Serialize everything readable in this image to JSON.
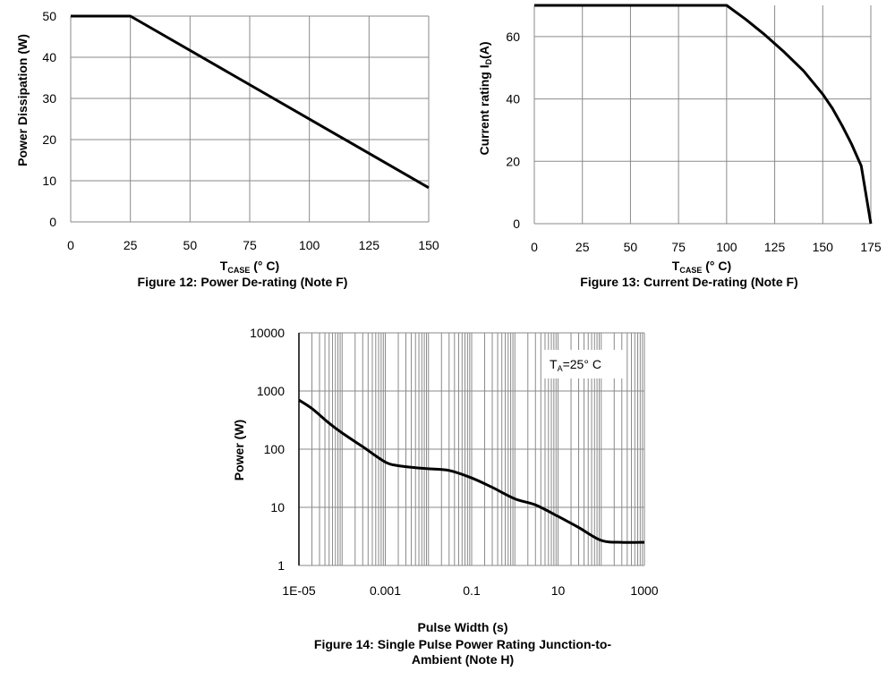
{
  "chart_data": [
    {
      "type": "line",
      "caption": "Figure 12: Power De-rating (Note F)",
      "xlabel": {
        "main": "T",
        "sub": "CASE",
        "rest": " (°  C)"
      },
      "ylabel": "Power Dissipation (W)",
      "xlim": [
        0,
        150
      ],
      "ylim": [
        0,
        50
      ],
      "xticks": [
        0,
        25,
        50,
        75,
        100,
        125,
        150
      ],
      "yticks": [
        0,
        10,
        20,
        30,
        40,
        50
      ],
      "grid": true,
      "series": [
        {
          "x": [
            0,
            25,
            150
          ],
          "y": [
            50,
            50,
            8.3
          ]
        }
      ]
    },
    {
      "type": "line",
      "caption": "Figure 13: Current De-rating (Note F)",
      "xlabel": {
        "main": "T",
        "sub": "CASE",
        "rest": " (°  C)"
      },
      "ylabel": {
        "main": "Current rating I",
        "sub": "D",
        "rest": "(A)"
      },
      "xlim": [
        0,
        175
      ],
      "ylim": [
        0,
        70
      ],
      "xticks": [
        0,
        25,
        50,
        75,
        100,
        125,
        150,
        175
      ],
      "yticks": [
        0,
        20,
        40,
        60
      ],
      "grid": true,
      "series": [
        {
          "x": [
            0,
            100,
            110,
            120,
            130,
            140,
            150,
            155,
            160,
            165,
            170,
            175
          ],
          "y": [
            70,
            70,
            65.5,
            60.5,
            55,
            49,
            41.5,
            37,
            31.5,
            25.5,
            18.5,
            0
          ]
        }
      ]
    },
    {
      "type": "line",
      "caption": [
        "Figure 14: Single Pulse Power Rating Junction-to-",
        "Ambient (Note H)"
      ],
      "xlabel": "Pulse Width (s)",
      "ylabel": "Power (W)",
      "xscale": "log",
      "yscale": "log",
      "xlim": [
        1e-05,
        1000
      ],
      "ylim": [
        1,
        10000
      ],
      "xtick_labels": [
        "1E-05",
        "0.001",
        "0.1",
        "10",
        "1000"
      ],
      "ytick_labels": [
        "1",
        "10",
        "100",
        "1000",
        "10000"
      ],
      "grid": true,
      "annotation": {
        "main": "T",
        "sub": "A",
        "rest": "=25°  C"
      },
      "series": [
        {
          "x": [
            1e-05,
            2e-05,
            5e-05,
            0.0001,
            0.0003,
            0.001,
            0.002,
            0.005,
            0.01,
            0.03,
            0.1,
            0.3,
            1,
            3,
            10,
            30,
            100,
            300,
            1000
          ],
          "y": [
            700,
            500,
            280,
            190,
            110,
            60,
            52,
            48,
            46,
            43,
            32,
            22,
            14,
            11,
            7,
            4.5,
            2.7,
            2.5,
            2.5
          ]
        }
      ]
    }
  ]
}
